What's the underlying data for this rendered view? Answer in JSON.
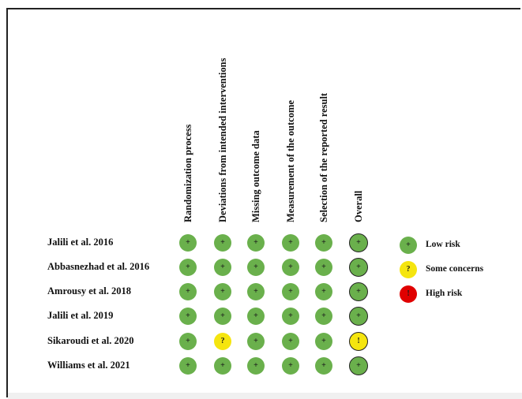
{
  "columns": [
    "Randomization process",
    "Deviations from intended interventions",
    "Missing outcome data",
    "Measurement of the outcome",
    "Selection of the reported result",
    "Overall"
  ],
  "studies": [
    {
      "name": "Jalili et al. 2016",
      "judgements": [
        "low",
        "low",
        "low",
        "low",
        "low",
        "low"
      ]
    },
    {
      "name": "Abbasnezhad et al. 2016",
      "judgements": [
        "low",
        "low",
        "low",
        "low",
        "low",
        "low"
      ]
    },
    {
      "name": "Amrousy et al. 2018",
      "judgements": [
        "low",
        "low",
        "low",
        "low",
        "low",
        "low"
      ]
    },
    {
      "name": "Jalili et al. 2019",
      "judgements": [
        "low",
        "low",
        "low",
        "low",
        "low",
        "low"
      ]
    },
    {
      "name": "Sikaroudi et al. 2020",
      "judgements": [
        "low",
        "some",
        "low",
        "low",
        "low",
        "some"
      ]
    },
    {
      "name": "Williams et al. 2021",
      "judgements": [
        "low",
        "low",
        "low",
        "low",
        "low",
        "low"
      ]
    }
  ],
  "symbols": {
    "low": "+",
    "some": "?",
    "some_overall": "!",
    "high": "!"
  },
  "legend": [
    {
      "level": "low",
      "label": "Low risk",
      "symbol": "+"
    },
    {
      "level": "some",
      "label": "Some concerns",
      "symbol": "?"
    },
    {
      "level": "high",
      "label": "High risk",
      "symbol": "!"
    }
  ],
  "colors": {
    "low": "#6ab04c",
    "some": "#f5e50f",
    "high": "#e00000"
  }
}
